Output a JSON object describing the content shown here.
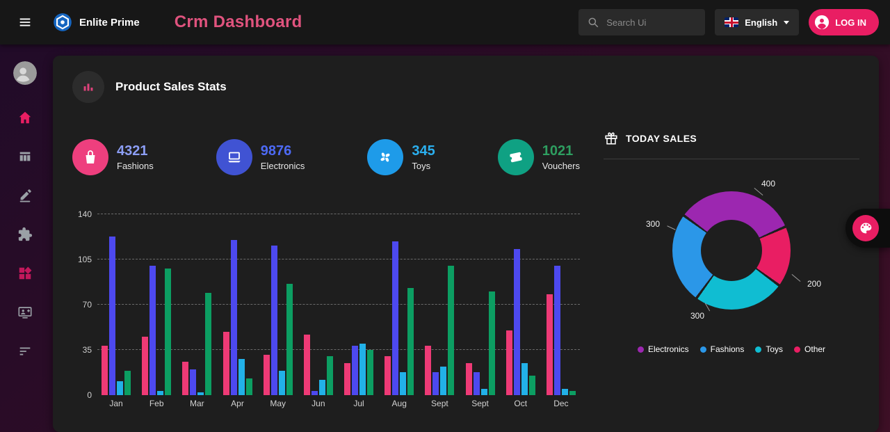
{
  "navbar": {
    "brand": "Enlite Prime",
    "title": "Crm Dashboard",
    "search_placeholder": "Search Ui",
    "language": "English",
    "login_label": "LOG IN",
    "accent_color": "#e91e63"
  },
  "sidebar": {
    "icons": [
      "avatar",
      "home-icon",
      "table-columns-icon",
      "edit-icon",
      "puzzle-icon",
      "widgets-icon",
      "personal-video-icon",
      "sort-icon"
    ]
  },
  "product_sales": {
    "title": "Product Sales Stats",
    "stats": [
      {
        "value": "4321",
        "label": "Fashions",
        "value_color": "#8c9ef5",
        "icon": "bag-icon",
        "icon_bg": "#ee3f7e"
      },
      {
        "value": "9876",
        "label": "Electronics",
        "value_color": "#4d6af5",
        "icon": "laptop-icon",
        "icon_bg": "#4053d3"
      },
      {
        "value": "345",
        "label": "Toys",
        "value_color": "#2bb0f0",
        "icon": "fan-icon",
        "icon_bg": "#1e9be9"
      },
      {
        "value": "1021",
        "label": "Vouchers",
        "value_color": "#2e9e60",
        "icon": "ticket-icon",
        "icon_bg": "#0fa183"
      }
    ]
  },
  "today_sales": {
    "title": "TODAY SALES",
    "icon": "gift-icon"
  },
  "theme_button": {
    "icon": "palette-icon"
  },
  "chart_data": [
    {
      "type": "bar",
      "title": "Product Sales Stats",
      "xlabel": "",
      "ylabel": "",
      "ylim": [
        0,
        140
      ],
      "yticks": [
        0,
        35,
        70,
        105,
        140
      ],
      "grid": "dashed",
      "categories": [
        "Jan",
        "Feb",
        "Mar",
        "Apr",
        "May",
        "Jun",
        "Jul",
        "Aug",
        "Sept",
        "Sept",
        "Oct",
        "Dec"
      ],
      "series": [
        {
          "name": "Fashions",
          "color": "#ee3a76",
          "values": [
            38,
            45,
            26,
            49,
            31,
            47,
            25,
            30,
            38,
            25,
            50,
            78
          ]
        },
        {
          "name": "Electronics",
          "color": "#4d49ef",
          "values": [
            123,
            100,
            20,
            120,
            116,
            3,
            38,
            119,
            18,
            18,
            113,
            100
          ]
        },
        {
          "name": "Toys",
          "color": "#22b1e8",
          "values": [
            11,
            3,
            2,
            28,
            19,
            12,
            40,
            18,
            22,
            5,
            25,
            5
          ]
        },
        {
          "name": "Vouchers",
          "color": "#0c9e62",
          "values": [
            19,
            98,
            79,
            13,
            86,
            30,
            35,
            83,
            100,
            80,
            15,
            3
          ]
        }
      ]
    },
    {
      "type": "pie",
      "subtype": "donut",
      "title": "Today Sales",
      "start_angle_deg": -55,
      "segments": [
        {
          "label": "Electronics",
          "value": 400,
          "color": "#9c27b0"
        },
        {
          "label": "Other",
          "value": 200,
          "color": "#e91e63"
        },
        {
          "label": "Toys",
          "value": 300,
          "color": "#10bdd2"
        },
        {
          "label": "Fashions",
          "value": 300,
          "color": "#2b97e8"
        }
      ],
      "legend": [
        {
          "label": "Electronics",
          "color": "#9c27b0"
        },
        {
          "label": "Fashions",
          "color": "#2b97e8"
        },
        {
          "label": "Toys",
          "color": "#10bdd2"
        },
        {
          "label": "Other",
          "color": "#e91e63"
        }
      ],
      "legend_position": "bottom"
    }
  ]
}
